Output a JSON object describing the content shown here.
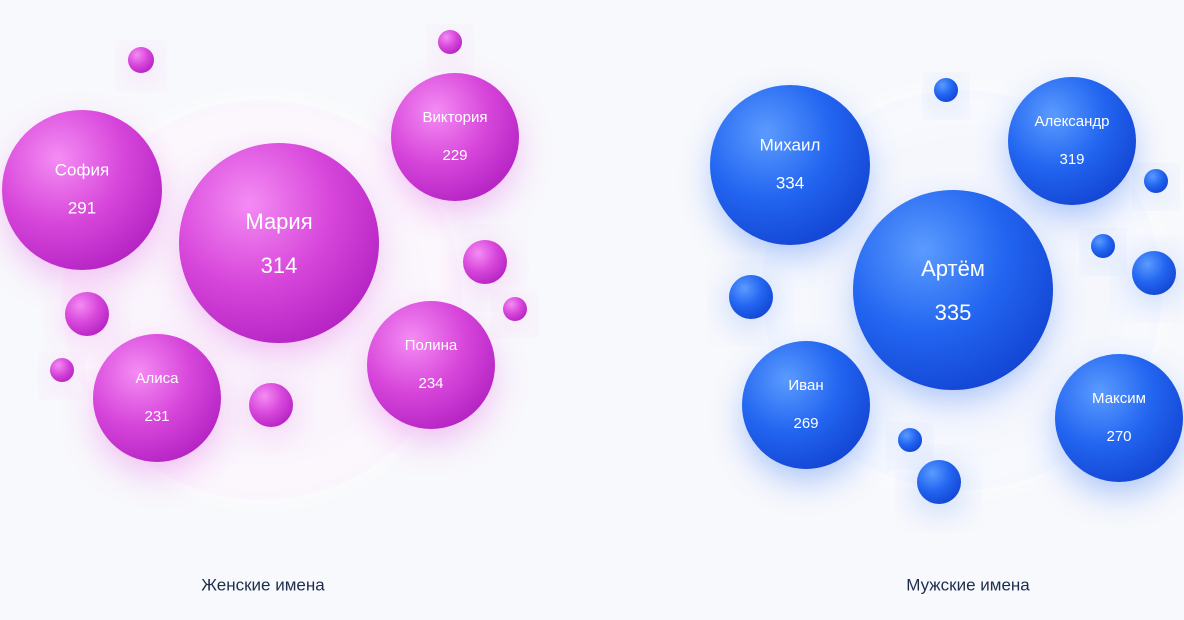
{
  "groups": [
    {
      "caption": "Женские имена",
      "bubbles": [
        {
          "name": "София",
          "count": "291"
        },
        {
          "name": "Мария",
          "count": "314"
        },
        {
          "name": "Виктория",
          "count": "229"
        },
        {
          "name": "Алиса",
          "count": "231"
        },
        {
          "name": "Полина",
          "count": "234"
        }
      ]
    },
    {
      "caption": "Мужские имена",
      "bubbles": [
        {
          "name": "Михаил",
          "count": "334"
        },
        {
          "name": "Александр",
          "count": "319"
        },
        {
          "name": "Артём",
          "count": "335"
        },
        {
          "name": "Иван",
          "count": "269"
        },
        {
          "name": "Максим",
          "count": "270"
        }
      ]
    }
  ]
}
